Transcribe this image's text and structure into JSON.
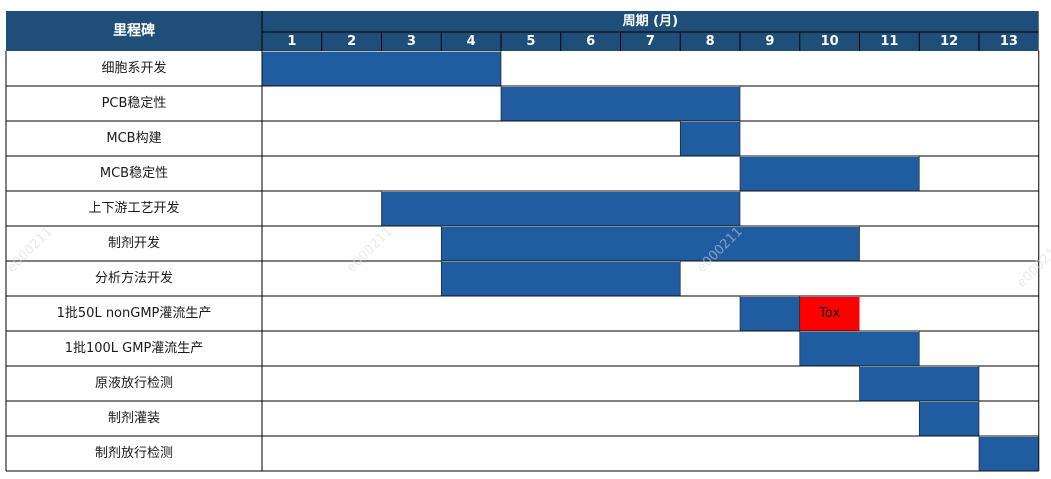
{
  "header": {
    "milestone_label": "里程碑",
    "period_label": "周期 (月)"
  },
  "colors": {
    "header_bg": "#1f4e79",
    "bar": "#1f5ca0",
    "highlight": "#ff0000",
    "grid": "#000000"
  },
  "watermark": "e000211",
  "chart_data": {
    "type": "gantt",
    "months": [
      "1",
      "2",
      "3",
      "4",
      "5",
      "6",
      "7",
      "8",
      "9",
      "10",
      "11",
      "12",
      "13"
    ],
    "tasks": [
      {
        "name": "细胞系开发",
        "start": 1,
        "end": 4
      },
      {
        "name": "PCB稳定性",
        "start": 5,
        "end": 8
      },
      {
        "name": "MCB构建",
        "start": 8,
        "end": 8
      },
      {
        "name": "MCB稳定性",
        "start": 9,
        "end": 11
      },
      {
        "name": "上下游工艺开发",
        "start": 3,
        "end": 8
      },
      {
        "name": "制剂开发",
        "start": 4,
        "end": 10
      },
      {
        "name": "分析方法开发",
        "start": 4,
        "end": 7
      },
      {
        "name": "1批50L nonGMP灌流生产",
        "start": 9,
        "end": 9,
        "highlight": {
          "start": 10,
          "end": 10,
          "label": "Tox"
        }
      },
      {
        "name": "1批100L GMP灌流生产",
        "start": 10,
        "end": 11
      },
      {
        "name": "原液放行检测",
        "start": 11,
        "end": 12
      },
      {
        "name": "制剂灌装",
        "start": 12,
        "end": 12
      },
      {
        "name": "制剂放行检测",
        "start": 13,
        "end": 13
      }
    ]
  }
}
